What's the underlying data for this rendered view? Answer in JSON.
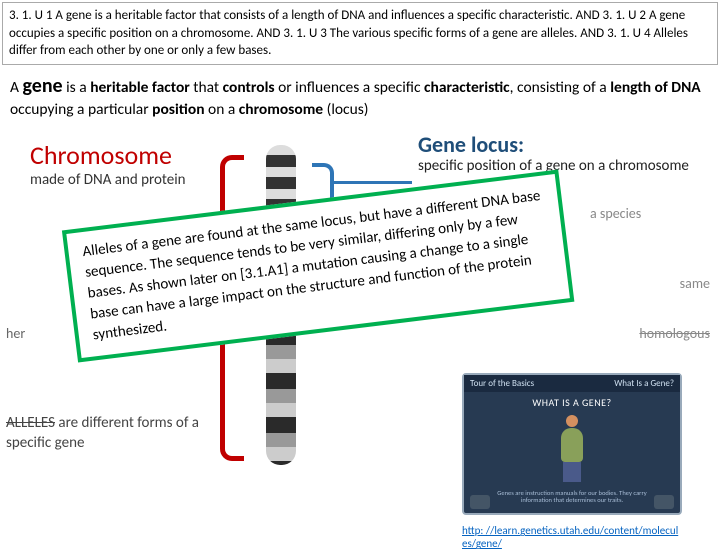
{
  "header": {
    "text": "3. 1. U 1 A gene is a heritable factor that consists of a length of DNA and influences a specific characteristic. AND 3. 1. U 2 A gene occupies a specific position on a chromosome. AND 3. 1. U 3 The various specific forms of a gene are alleles. AND 3. 1. U 4 Alleles differ from each other by one or only a few bases."
  },
  "definition": {
    "prefix": "A ",
    "gene": "gene",
    "mid1": " is a ",
    "b1": "heritable factor",
    "mid2": " that ",
    "b2": "controls",
    "mid3": " or influences a specific ",
    "b3": "characteristic",
    "mid4": ", consisting of a ",
    "b4": "length of DNA",
    "mid5": " occupying a particular ",
    "b5": "position",
    "mid6": " on a ",
    "b6": "chromosome",
    "mid7": " (locus)"
  },
  "labels": {
    "chromosome": "Chromosome",
    "chromosome_sub": "made of DNA and protein",
    "gene_locus": "Gene locus:",
    "gene_locus_sub": "specific position of a gene on a chromosome",
    "species": "a species",
    "same": "same",
    "homologous": "homologous",
    "heribox": "her",
    "alleles_strike": "ALLELES",
    "alleles_rest": " are different forms of a specific gene"
  },
  "note": {
    "text": "Alleles of a gene are found at the same locus, but have a different DNA base sequence. The sequence tends to be very similar, differing only by a few bases. As shown later on [3.1.A1] a mutation causing a change to a single base can have a large impact on the structure and function of the protein synthesized."
  },
  "thumb": {
    "tour": "Tour of the Basics",
    "what": "What Is a Gene?",
    "title": "WHAT IS A GENE?",
    "desc": "Genes are instruction manuals for our bodies. They carry information that determines our traits."
  },
  "link": {
    "text": "http: //learn.genetics.utah.edu/content/molecules/gene/"
  },
  "colors": {
    "red": "#c00000",
    "blue": "#1f4e79",
    "green_border": "#00b050",
    "link": "#0563c1"
  }
}
